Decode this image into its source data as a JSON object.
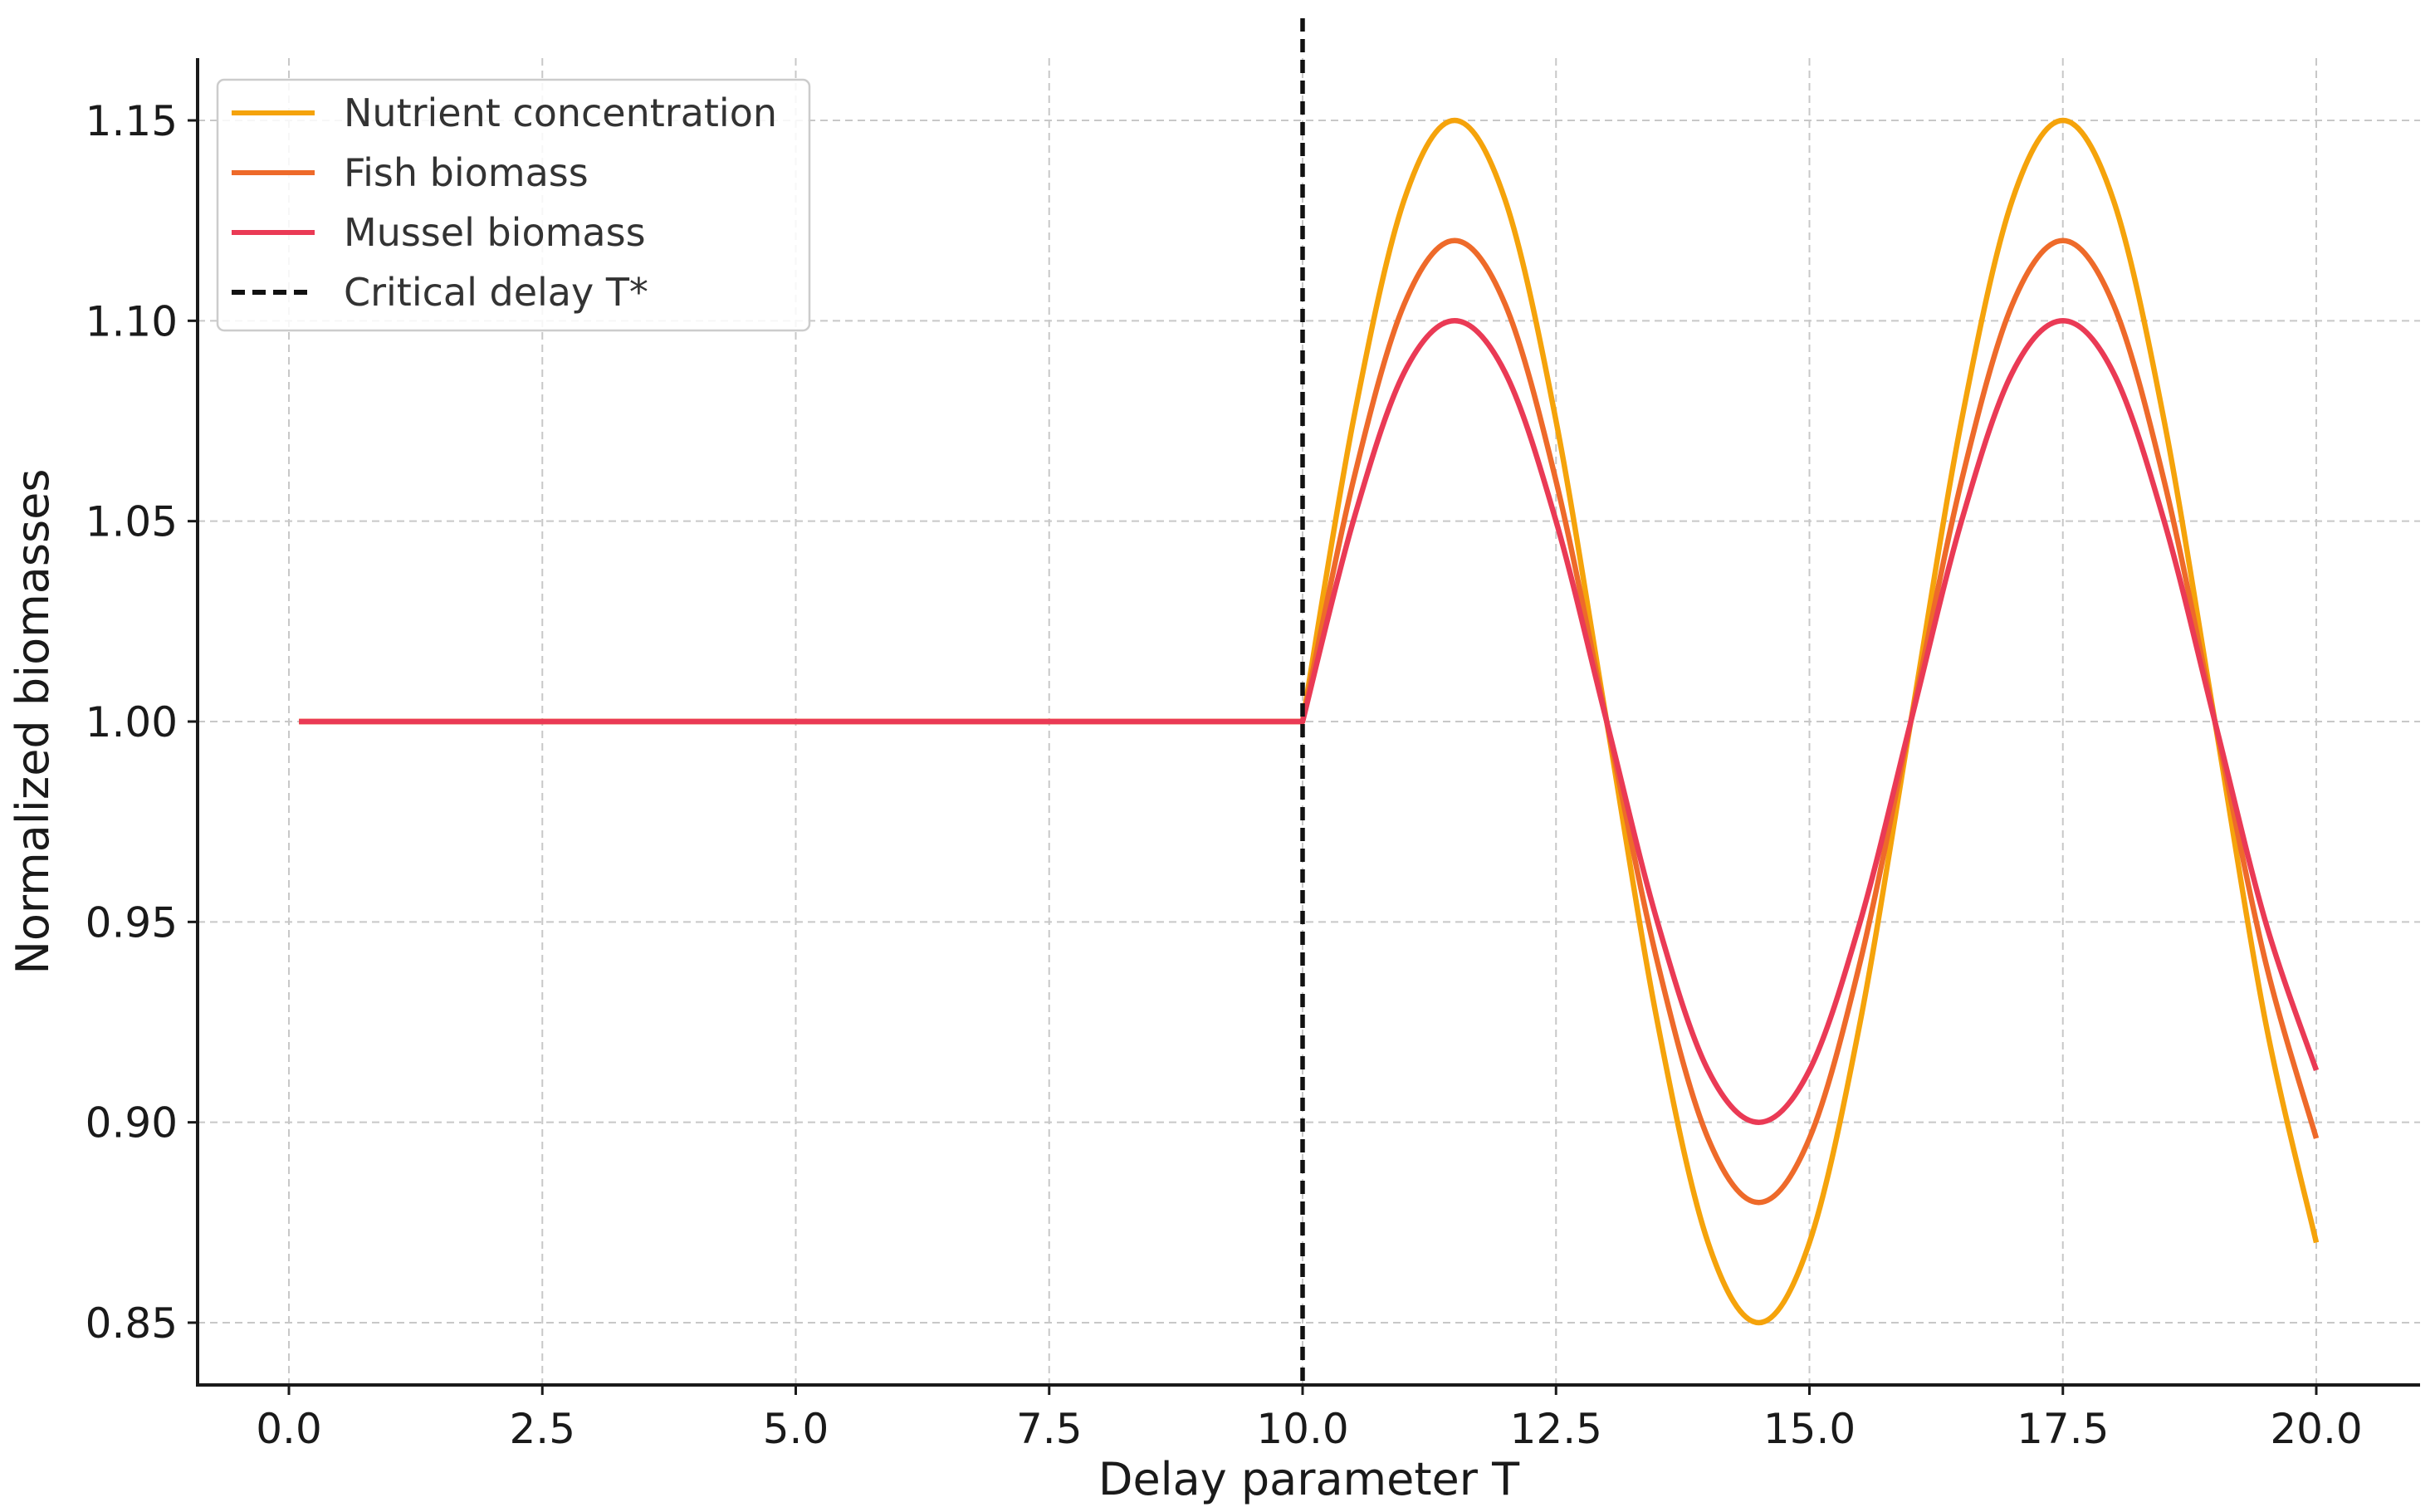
{
  "chart_data": {
    "type": "line",
    "title": "",
    "xlabel": "Delay parameter T",
    "ylabel": "Normalized biomasses",
    "xlim": [
      -0.9,
      21.0
    ],
    "ylim": [
      0.835,
      1.165
    ],
    "xticks": [
      0.0,
      2.5,
      5.0,
      7.5,
      10.0,
      12.5,
      15.0,
      17.5,
      20.0
    ],
    "xtick_labels": [
      "0.0",
      "2.5",
      "5.0",
      "7.5",
      "10.0",
      "12.5",
      "15.0",
      "17.5",
      "20.0"
    ],
    "yticks": [
      0.85,
      0.9,
      0.95,
      1.0,
      1.05,
      1.1,
      1.15
    ],
    "ytick_labels": [
      "0.85",
      "0.90",
      "0.95",
      "1.00",
      "1.05",
      "1.10",
      "1.15"
    ],
    "grid": true,
    "legend_position": "top-left",
    "series": [
      {
        "name": "Nutrient concentration",
        "color": "#f5a30b",
        "x": [
          0.1,
          10.0,
          10.5,
          11.0,
          11.5,
          12.0,
          12.5,
          13.0,
          13.5,
          14.0,
          14.5,
          15.0,
          15.5,
          16.0,
          16.5,
          17.0,
          17.5,
          18.0,
          18.5,
          19.0,
          19.5,
          20.0
        ],
        "y": [
          1.0,
          1.0,
          1.075,
          1.13,
          1.15,
          1.13,
          1.075,
          1.0,
          0.925,
          0.87,
          0.85,
          0.87,
          0.925,
          1.0,
          1.075,
          1.13,
          1.15,
          1.13,
          1.075,
          1.0,
          0.925,
          0.87
        ]
      },
      {
        "name": "Fish biomass",
        "color": "#ee6a2a",
        "x": [
          0.1,
          10.0,
          10.5,
          11.0,
          11.5,
          12.0,
          12.5,
          13.0,
          13.5,
          14.0,
          14.5,
          15.0,
          15.5,
          16.0,
          16.5,
          17.0,
          17.5,
          18.0,
          18.5,
          19.0,
          19.5,
          20.0
        ],
        "y": [
          1.0,
          1.0,
          1.06,
          1.104,
          1.12,
          1.104,
          1.06,
          1.0,
          0.94,
          0.896,
          0.88,
          0.896,
          0.94,
          1.0,
          1.06,
          1.104,
          1.12,
          1.104,
          1.06,
          1.0,
          0.94,
          0.896
        ]
      },
      {
        "name": "Mussel biomass",
        "color": "#ea3a55",
        "x": [
          0.1,
          10.0,
          10.5,
          11.0,
          11.5,
          12.0,
          12.5,
          13.0,
          13.5,
          14.0,
          14.5,
          15.0,
          15.5,
          16.0,
          16.5,
          17.0,
          17.5,
          18.0,
          18.5,
          19.0,
          19.5,
          20.0
        ],
        "y": [
          1.0,
          1.0,
          1.05,
          1.087,
          1.1,
          1.087,
          1.05,
          1.0,
          0.95,
          0.913,
          0.9,
          0.913,
          0.95,
          1.0,
          1.05,
          1.087,
          1.1,
          1.087,
          1.05,
          1.0,
          0.95,
          0.913
        ]
      }
    ],
    "vertical_line": {
      "name": "Critical delay T*",
      "x": 10.0,
      "color": "#111111",
      "style": "dashed"
    }
  }
}
